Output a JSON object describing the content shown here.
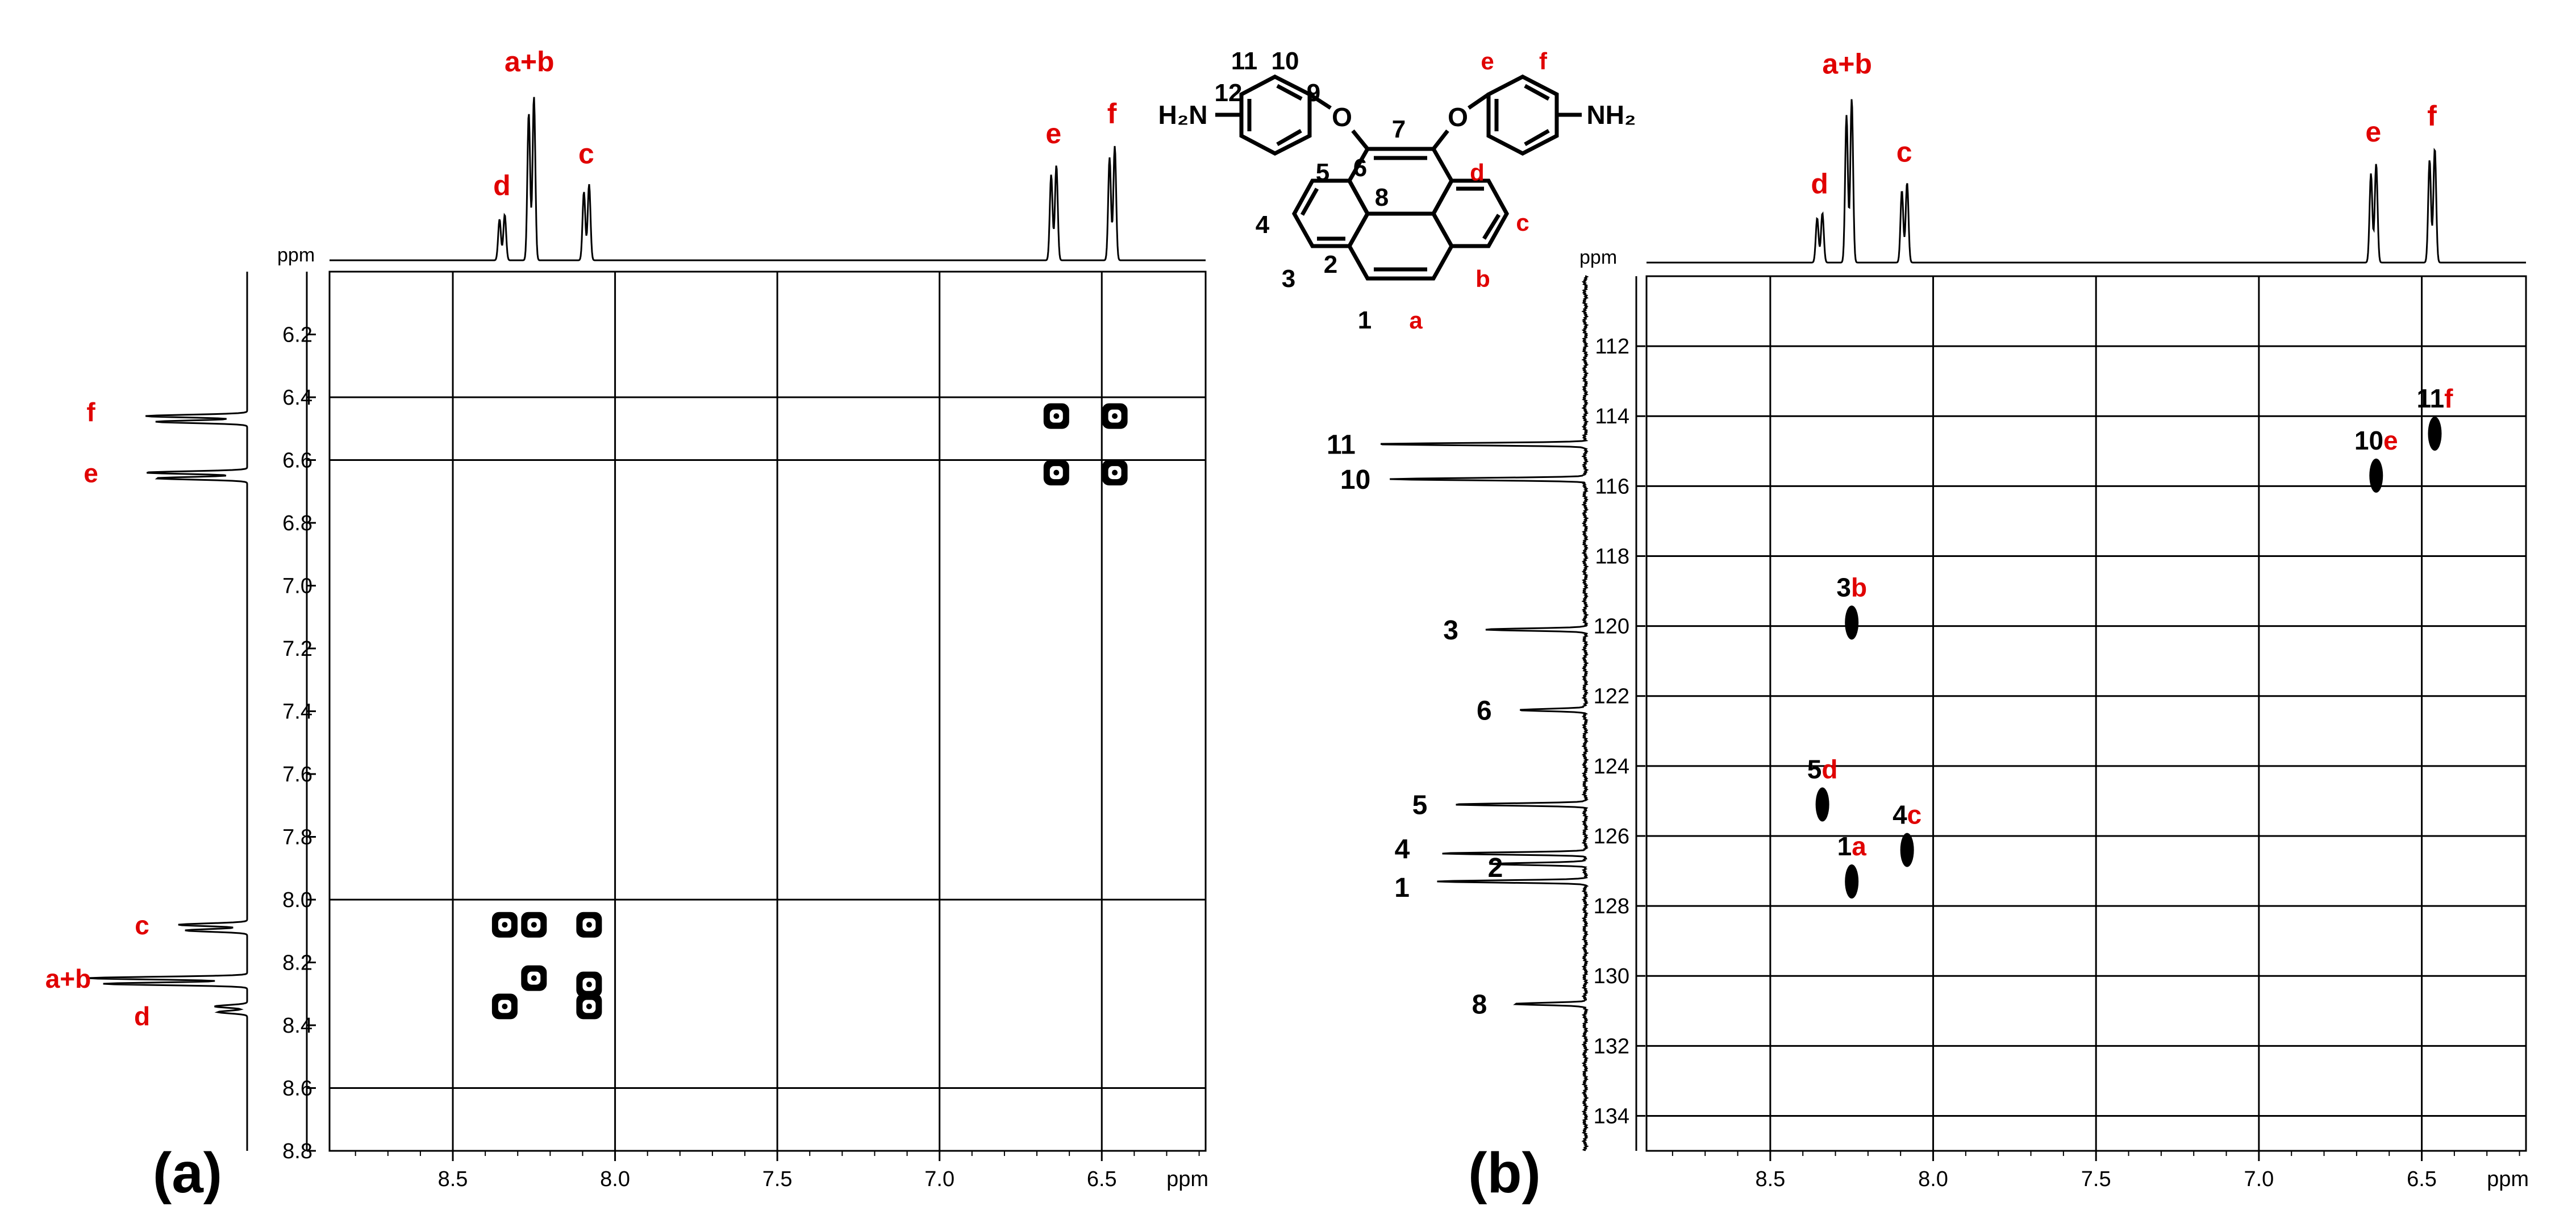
{
  "colors": {
    "ink": "#000000",
    "accent": "#e00000",
    "grid": "#000000",
    "frame": "#000000"
  },
  "panel_labels": [
    "(a)",
    "(b)"
  ],
  "unit": "ppm",
  "chart_data": [
    {
      "panel": "(a)",
      "type": "scatter",
      "subtype": "2D NMR (H,H-COSY) contour plot",
      "x_axis": {
        "label": "ppm",
        "range": [
          8.88,
          6.18
        ],
        "reversed": true,
        "ticks": [
          "8.5",
          "8.0",
          "7.5",
          "7.0",
          "6.5"
        ],
        "gridlines": [
          8.5,
          8.0,
          7.5,
          7.0,
          6.5
        ]
      },
      "y_axis": {
        "label": "ppm",
        "range": [
          6.0,
          8.8
        ],
        "reversed": true,
        "ticks": [
          "6.2",
          "6.4",
          "6.6",
          "6.8",
          "7.0",
          "7.2",
          "7.4",
          "7.6",
          "7.8",
          "8.0",
          "8.2",
          "8.4",
          "8.6",
          "8.8"
        ],
        "gridlines": [
          6.4,
          6.6,
          8.0,
          8.6
        ]
      },
      "grid": true,
      "top_projection": {
        "peaks": [
          {
            "label": "d",
            "shift": 8.34,
            "height": 0.24
          },
          {
            "label": "a+b",
            "shift": 8.25,
            "height": 0.86
          },
          {
            "label": "c",
            "shift": 8.08,
            "height": 0.4
          },
          {
            "label": "e",
            "shift": 6.64,
            "height": 0.5
          },
          {
            "label": "f",
            "shift": 6.46,
            "height": 0.6
          }
        ]
      },
      "left_projection": {
        "peaks": [
          {
            "label": "f",
            "shift": 6.46,
            "height": 0.56
          },
          {
            "label": "e",
            "shift": 6.64,
            "height": 0.56
          },
          {
            "label": "c",
            "shift": 8.08,
            "height": 0.38
          },
          {
            "label": "a+b",
            "shift": 8.25,
            "height": 0.88
          },
          {
            "label": "d",
            "shift": 8.34,
            "height": 0.18
          }
        ]
      },
      "cross_peaks": [
        {
          "x": 6.64,
          "y": 6.46
        },
        {
          "x": 6.46,
          "y": 6.46
        },
        {
          "x": 6.64,
          "y": 6.64
        },
        {
          "x": 6.46,
          "y": 6.64
        },
        {
          "x": 8.34,
          "y": 8.08
        },
        {
          "x": 8.25,
          "y": 8.08
        },
        {
          "x": 8.08,
          "y": 8.08
        },
        {
          "x": 8.25,
          "y": 8.25
        },
        {
          "x": 8.08,
          "y": 8.27
        },
        {
          "x": 8.34,
          "y": 8.34
        },
        {
          "x": 8.08,
          "y": 8.34
        }
      ]
    },
    {
      "panel": "(b)",
      "type": "scatter",
      "subtype": "2D NMR (HSQC) contour plot",
      "x_axis": {
        "label": "ppm",
        "range": [
          8.88,
          6.18
        ],
        "reversed": true,
        "ticks": [
          "8.5",
          "8.0",
          "7.5",
          "7.0",
          "6.5"
        ],
        "gridlines": [
          8.5,
          8.0,
          7.5,
          7.0,
          6.5
        ]
      },
      "y_axis": {
        "label": "ppm",
        "range": [
          110.0,
          135.0
        ],
        "reversed": true,
        "ticks": [
          "112",
          "114",
          "116",
          "118",
          "120",
          "122",
          "124",
          "126",
          "128",
          "130",
          "132",
          "134"
        ],
        "gridlines": [
          112,
          114,
          116,
          118,
          120,
          122,
          124,
          126,
          128,
          130,
          132,
          134
        ]
      },
      "grid": true,
      "top_projection": {
        "peaks": [
          {
            "label": "d",
            "shift": 8.34,
            "height": 0.26
          },
          {
            "label": "a+b",
            "shift": 8.25,
            "height": 0.86
          },
          {
            "label": "c",
            "shift": 8.08,
            "height": 0.42
          },
          {
            "label": "e",
            "shift": 6.64,
            "height": 0.52
          },
          {
            "label": "f",
            "shift": 6.46,
            "height": 0.6
          }
        ]
      },
      "left_projection": {
        "peaks": [
          {
            "label": "11",
            "shift": 114.8,
            "height": 0.88
          },
          {
            "label": "10",
            "shift": 115.8,
            "height": 0.82
          },
          {
            "label": "3",
            "shift": 120.1,
            "height": 0.42
          },
          {
            "label": "6",
            "shift": 122.4,
            "height": 0.28
          },
          {
            "label": "5",
            "shift": 125.1,
            "height": 0.55
          },
          {
            "label": "4",
            "shift": 126.5,
            "height": 0.6
          },
          {
            "label": "2",
            "shift": 126.8,
            "height": 0.4
          },
          {
            "label": "1",
            "shift": 127.3,
            "height": 0.62
          },
          {
            "label": "8",
            "shift": 130.8,
            "height": 0.3
          }
        ]
      },
      "cross_peaks": [
        {
          "x": 6.46,
          "y": 114.5,
          "label_c": "11",
          "label_h": "f"
        },
        {
          "x": 6.64,
          "y": 115.7,
          "label_c": "10",
          "label_h": "e"
        },
        {
          "x": 8.25,
          "y": 119.9,
          "label_c": "3",
          "label_h": "b"
        },
        {
          "x": 8.34,
          "y": 125.1,
          "label_c": "5",
          "label_h": "d"
        },
        {
          "x": 8.08,
          "y": 126.4,
          "label_c": "4",
          "label_h": "c"
        },
        {
          "x": 8.25,
          "y": 127.3,
          "label_c": "1",
          "label_h": "a"
        }
      ]
    }
  ],
  "molecule": {
    "amine_label": "H₂N",
    "amine_label_right": "NH₂",
    "oxygen": "O",
    "carbon_labels": [
      "12",
      "11",
      "10",
      "9",
      "7",
      "6",
      "5",
      "8",
      "4",
      "3",
      "2",
      "1"
    ],
    "proton_labels": [
      "e",
      "f",
      "d",
      "c",
      "b",
      "a"
    ]
  }
}
